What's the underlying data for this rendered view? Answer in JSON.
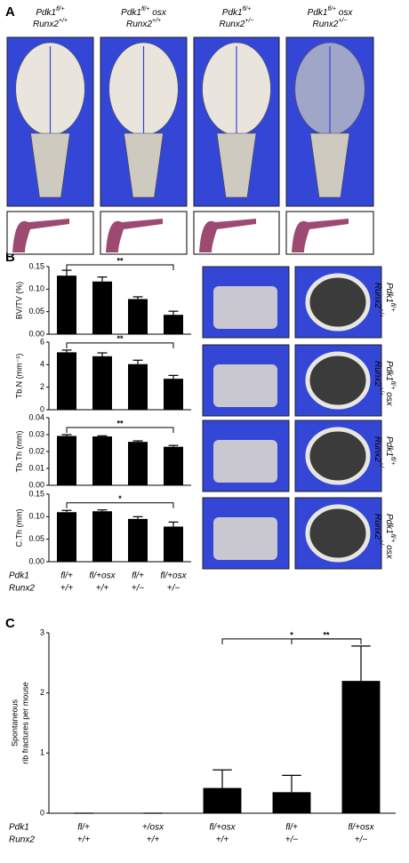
{
  "panel_labels": [
    "A",
    "B",
    "C"
  ],
  "genotypes": [
    {
      "lines": [
        {
          "gene": "Pdk1",
          "sup": "fl/+"
        },
        {
          "gene": "Runx2",
          "sup": "+/+"
        }
      ]
    },
    {
      "lines": [
        {
          "gene": "Pdk1",
          "sup": "fl/+",
          "after": " osx"
        },
        {
          "gene": "Runx2",
          "sup": "+/+"
        }
      ]
    },
    {
      "lines": [
        {
          "gene": "Pdk1",
          "sup": "fl/+"
        },
        {
          "gene": "Runx2",
          "sup": "+/−"
        }
      ]
    },
    {
      "lines": [
        {
          "gene": "Pdk1",
          "sup": "fl/+",
          "after": " osx"
        },
        {
          "gene": "Runx2",
          "sup": "+/−"
        }
      ]
    }
  ],
  "chart_data": [
    {
      "type": "bar",
      "ylabel": "BV/TV (%)",
      "color": "#000000",
      "ylim": [
        0,
        0.15
      ],
      "yticks": [
        {
          "value": 0,
          "label": "0.00"
        },
        0.05,
        {
          "value": 0.1,
          "label": "0.10"
        },
        0.15
      ],
      "values": [
        0.13,
        0.117,
        0.078,
        0.043
      ],
      "errors": [
        0.012,
        0.01,
        0.005,
        0.008
      ],
      "significance": [
        {
          "from": 0,
          "to": 3,
          "label": "**"
        }
      ]
    },
    {
      "type": "bar",
      "ylabel": "Tb.N (mm⁻¹)",
      "color": "#000000",
      "ylim": [
        0,
        6
      ],
      "yticks": [
        0,
        2,
        4,
        6
      ],
      "values": [
        5.1,
        4.75,
        4.05,
        2.75
      ],
      "errors": [
        0.2,
        0.3,
        0.35,
        0.3
      ],
      "significance": [
        {
          "from": 0,
          "to": 3,
          "label": "**"
        }
      ]
    },
    {
      "type": "bar",
      "ylabel": "Tb.Th (mm)",
      "color": "#000000",
      "ylim": [
        0,
        0.04
      ],
      "yticks": [
        {
          "value": 0,
          "label": "0.00"
        },
        0.01,
        0.02,
        0.03,
        0.04
      ],
      "values": [
        0.0292,
        0.0289,
        0.0257,
        0.0228
      ],
      "errors": [
        0.0008,
        0.0004,
        0.0006,
        0.0008
      ],
      "significance": [
        {
          "from": 0,
          "to": 3,
          "label": "**"
        }
      ]
    },
    {
      "type": "bar",
      "ylabel": "C.Th (mm)",
      "color": "#000000",
      "ylim": [
        0,
        0.15
      ],
      "yticks": [
        {
          "value": 0,
          "label": "0.00"
        },
        0.05,
        {
          "value": 0.1,
          "label": "0.10"
        },
        0.15
      ],
      "values": [
        0.11,
        0.112,
        0.095,
        0.078
      ],
      "errors": [
        0.004,
        0.003,
        0.005,
        0.01
      ],
      "significance": [
        {
          "from": 0,
          "to": 3,
          "label": "*"
        }
      ],
      "row_names": [
        "Pdk1",
        "Runx2"
      ],
      "categories": [
        "fl/+",
        "fl/+osx",
        "fl/+",
        "fl/+osx"
      ],
      "categories2": [
        "+/+",
        "+/+",
        "+/−",
        "+/−"
      ]
    },
    {
      "type": "bar",
      "ylabel": [
        "Spontaneous",
        "rib fractures per mouse"
      ],
      "color": "#000000",
      "ylim": [
        0,
        3
      ],
      "yticks": [
        0,
        1,
        2,
        3
      ],
      "values": [
        0,
        0,
        0.42,
        0.35,
        2.2
      ],
      "errors": [
        0,
        0,
        0.3,
        0.28,
        0.58
      ],
      "significance": [
        {
          "from": 2,
          "to": 4,
          "label": "*"
        },
        {
          "from": 3,
          "to": 4,
          "label": "**"
        }
      ],
      "row_names": [
        "Pdk1",
        "Runx2"
      ],
      "categories": [
        "fl/+",
        "+/osx",
        "fl/+osx",
        "fl/+",
        "fl/+osx"
      ],
      "categories2": [
        "+/+",
        "+/+",
        "+/+",
        "+/−",
        "+/−"
      ]
    }
  ]
}
